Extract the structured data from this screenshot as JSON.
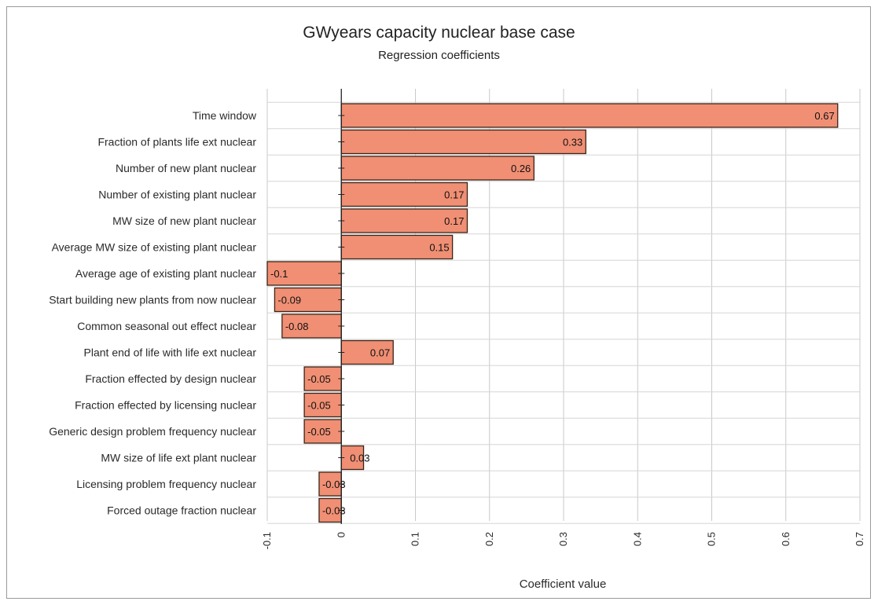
{
  "chart_data": {
    "type": "bar",
    "orientation": "horizontal",
    "title": "GWyears capacity nuclear base case",
    "subtitle": "Regression coefficients",
    "xlabel": "Coefficient value",
    "ylabel": "",
    "xlim": [
      -0.1,
      0.7
    ],
    "xticks": [
      "-0.1",
      "0",
      "0.1",
      "0.2",
      "0.3",
      "0.4",
      "0.5",
      "0.6",
      "0.7"
    ],
    "xtick_values": [
      -0.1,
      0,
      0.1,
      0.2,
      0.3,
      0.4,
      0.5,
      0.6,
      0.7
    ],
    "grid": true,
    "legend": "none",
    "bar_color": "#f08f74",
    "bar_edge_color": "#3a2418",
    "categories": [
      "Time window",
      "Fraction of plants life ext nuclear",
      "Number of new plant nuclear",
      "Number of existing plant nuclear",
      "MW size of new plant nuclear",
      "Average MW size of existing plant nuclear",
      "Average age of existing plant nuclear",
      "Start building new plants from now nuclear",
      "Common seasonal out effect nuclear",
      "Plant end of life with life ext nuclear",
      "Fraction effected by design nuclear",
      "Fraction effected by licensing nuclear",
      "Generic design problem frequency nuclear",
      "MW size of life ext plant nuclear",
      "Licensing problem frequency nuclear",
      "Forced outage fraction nuclear"
    ],
    "values": [
      0.67,
      0.33,
      0.26,
      0.17,
      0.17,
      0.15,
      -0.1,
      -0.09,
      -0.08,
      0.07,
      -0.05,
      -0.05,
      -0.05,
      0.03,
      -0.03,
      -0.03
    ],
    "value_labels": [
      "0.67",
      "0.33",
      "0.26",
      "0.17",
      "0.17",
      "0.15",
      "-0.1",
      "-0.09",
      "-0.08",
      "0.07",
      "-0.05",
      "-0.05",
      "-0.05",
      "0.03",
      "-0.03",
      "-0.03"
    ]
  }
}
